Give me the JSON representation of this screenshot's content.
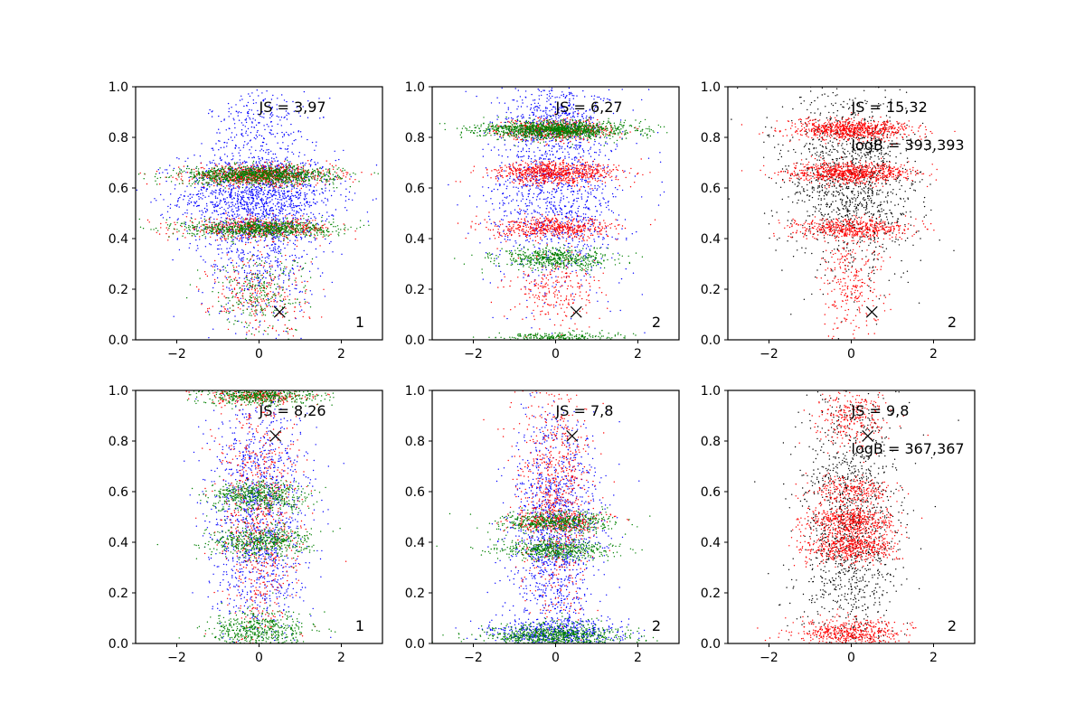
{
  "chart_data": [
    {
      "type": "scatter",
      "panel_label": "1",
      "annotations": [
        "JS = 3,97"
      ],
      "xlim": [
        -3,
        3
      ],
      "ylim": [
        0,
        1
      ],
      "xticks": [
        "−2",
        "0",
        "2"
      ],
      "yticks": [
        "0.0",
        "0.2",
        "0.4",
        "0.6",
        "0.8",
        "1.0"
      ],
      "marker": {
        "x": 0.5,
        "y": 0.11,
        "symbol": "x"
      },
      "series": [
        {
          "color": "#0000ff",
          "bands": [
            {
              "y": 0.57,
              "sy": 0.09,
              "sx": 0.95,
              "w": 5
            },
            {
              "y": 0.35,
              "sy": 0.14,
              "sx": 0.7,
              "w": 2
            },
            {
              "y": 0.85,
              "sy": 0.09,
              "sx": 0.6,
              "w": 1
            }
          ]
        },
        {
          "color": "#ff0000",
          "bands": [
            {
              "y": 0.65,
              "sy": 0.02,
              "sx": 0.9,
              "w": 3
            },
            {
              "y": 0.44,
              "sy": 0.02,
              "sx": 0.9,
              "w": 2
            },
            {
              "y": 0.18,
              "sy": 0.08,
              "sx": 0.6,
              "w": 1
            }
          ]
        },
        {
          "color": "#008000",
          "bands": [
            {
              "y": 0.65,
              "sy": 0.018,
              "sx": 0.95,
              "w": 4
            },
            {
              "y": 0.44,
              "sy": 0.017,
              "sx": 0.9,
              "w": 3
            },
            {
              "y": 0.18,
              "sy": 0.08,
              "sx": 0.6,
              "w": 1
            }
          ]
        }
      ]
    },
    {
      "type": "scatter",
      "panel_label": "2",
      "annotations": [
        "JS = 6,27"
      ],
      "xlim": [
        -3,
        3
      ],
      "ylim": [
        0,
        1
      ],
      "xticks": [
        "−2",
        "0",
        "2"
      ],
      "yticks": [
        "0.0",
        "0.2",
        "0.4",
        "0.6",
        "0.8",
        "1.0"
      ],
      "marker": {
        "x": 0.5,
        "y": 0.11,
        "symbol": "x"
      },
      "series": [
        {
          "color": "#0000ff",
          "bands": [
            {
              "y": 0.6,
              "sy": 0.2,
              "sx": 0.8,
              "w": 5
            },
            {
              "y": 0.9,
              "sy": 0.06,
              "sx": 0.5,
              "w": 1
            }
          ]
        },
        {
          "color": "#ff0000",
          "bands": [
            {
              "y": 0.66,
              "sy": 0.022,
              "sx": 0.75,
              "w": 3
            },
            {
              "y": 0.44,
              "sy": 0.02,
              "sx": 0.75,
              "w": 2
            },
            {
              "y": 0.83,
              "sy": 0.02,
              "sx": 0.7,
              "w": 2
            },
            {
              "y": 0.2,
              "sy": 0.08,
              "sx": 0.5,
              "w": 1
            }
          ]
        },
        {
          "color": "#008000",
          "bands": [
            {
              "y": 0.83,
              "sy": 0.017,
              "sx": 0.9,
              "w": 5
            },
            {
              "y": 0.32,
              "sy": 0.02,
              "sx": 0.7,
              "w": 2
            },
            {
              "y": 0.01,
              "sy": 0.01,
              "sx": 0.7,
              "w": 1
            }
          ]
        }
      ]
    },
    {
      "type": "scatter",
      "panel_label": "2",
      "annotations": [
        "JS = 15,32",
        "logB = 393,393"
      ],
      "xlim": [
        -3,
        3
      ],
      "ylim": [
        0,
        1
      ],
      "xticks": [
        "−2",
        "0",
        "2"
      ],
      "yticks": [
        "0.0",
        "0.2",
        "0.4",
        "0.6",
        "0.8",
        "1.0"
      ],
      "marker": {
        "x": 0.5,
        "y": 0.11,
        "symbol": "x"
      },
      "series": [
        {
          "color": "#000000",
          "bands": [
            {
              "y": 0.62,
              "sy": 0.18,
              "sx": 0.8,
              "w": 5
            }
          ]
        },
        {
          "color": "#ff0000",
          "bands": [
            {
              "y": 0.83,
              "sy": 0.02,
              "sx": 0.75,
              "w": 3
            },
            {
              "y": 0.66,
              "sy": 0.02,
              "sx": 0.75,
              "w": 3
            },
            {
              "y": 0.44,
              "sy": 0.02,
              "sx": 0.7,
              "w": 2
            },
            {
              "y": 0.22,
              "sy": 0.1,
              "sx": 0.4,
              "w": 1
            }
          ]
        }
      ]
    },
    {
      "type": "scatter",
      "panel_label": "1",
      "annotations": [
        "JS = 8,26"
      ],
      "xlim": [
        -3,
        3
      ],
      "ylim": [
        0,
        1
      ],
      "xticks": [
        "−2",
        "0",
        "2"
      ],
      "yticks": [
        "0.0",
        "0.2",
        "0.4",
        "0.6",
        "0.8",
        "1.0"
      ],
      "marker": {
        "x": 0.4,
        "y": 0.82,
        "symbol": "x"
      },
      "series": [
        {
          "color": "#0000ff",
          "bands": [
            {
              "y": 0.5,
              "sy": 0.25,
              "sx": 0.6,
              "w": 5
            }
          ]
        },
        {
          "color": "#ff0000",
          "bands": [
            {
              "y": 0.5,
              "sy": 0.28,
              "sx": 0.5,
              "w": 3
            },
            {
              "y": 0.98,
              "sy": 0.02,
              "sx": 0.6,
              "w": 1
            }
          ]
        },
        {
          "color": "#008000",
          "bands": [
            {
              "y": 0.58,
              "sy": 0.03,
              "sx": 0.6,
              "w": 2
            },
            {
              "y": 0.4,
              "sy": 0.03,
              "sx": 0.6,
              "w": 2
            },
            {
              "y": 0.98,
              "sy": 0.02,
              "sx": 0.7,
              "w": 2
            },
            {
              "y": 0.05,
              "sy": 0.04,
              "sx": 0.6,
              "w": 2
            }
          ]
        }
      ]
    },
    {
      "type": "scatter",
      "panel_label": "2",
      "annotations": [
        "JS = 7,8"
      ],
      "xlim": [
        -3,
        3
      ],
      "ylim": [
        0,
        1
      ],
      "xticks": [
        "−2",
        "0",
        "2"
      ],
      "yticks": [
        "0.0",
        "0.2",
        "0.4",
        "0.6",
        "0.8",
        "1.0"
      ],
      "marker": {
        "x": 0.4,
        "y": 0.82,
        "symbol": "x"
      },
      "series": [
        {
          "color": "#0000ff",
          "bands": [
            {
              "y": 0.45,
              "sy": 0.22,
              "sx": 0.55,
              "w": 5
            },
            {
              "y": 0.04,
              "sy": 0.03,
              "sx": 0.8,
              "w": 2
            }
          ]
        },
        {
          "color": "#ff0000",
          "bands": [
            {
              "y": 0.6,
              "sy": 0.25,
              "sx": 0.45,
              "w": 3
            },
            {
              "y": 0.48,
              "sy": 0.02,
              "sx": 0.6,
              "w": 1
            }
          ]
        },
        {
          "color": "#008000",
          "bands": [
            {
              "y": 0.48,
              "sy": 0.02,
              "sx": 0.7,
              "w": 2
            },
            {
              "y": 0.37,
              "sy": 0.02,
              "sx": 0.7,
              "w": 2
            },
            {
              "y": 0.03,
              "sy": 0.025,
              "sx": 0.8,
              "w": 3
            }
          ]
        }
      ]
    },
    {
      "type": "scatter",
      "panel_label": "2",
      "annotations": [
        "JS = 9,8",
        "logB = 367,367"
      ],
      "xlim": [
        -3,
        3
      ],
      "ylim": [
        0,
        1
      ],
      "xticks": [
        "−2",
        "0",
        "2"
      ],
      "yticks": [
        "0.0",
        "0.2",
        "0.4",
        "0.6",
        "0.8",
        "1.0"
      ],
      "marker": {
        "x": 0.4,
        "y": 0.82,
        "symbol": "x"
      },
      "series": [
        {
          "color": "#000000",
          "bands": [
            {
              "y": 0.45,
              "sy": 0.28,
              "sx": 0.6,
              "w": 5
            }
          ]
        },
        {
          "color": "#ff0000",
          "bands": [
            {
              "y": 0.48,
              "sy": 0.03,
              "sx": 0.55,
              "w": 2
            },
            {
              "y": 0.38,
              "sy": 0.03,
              "sx": 0.55,
              "w": 2
            },
            {
              "y": 0.6,
              "sy": 0.03,
              "sx": 0.5,
              "w": 1
            },
            {
              "y": 0.04,
              "sy": 0.03,
              "sx": 0.65,
              "w": 2
            },
            {
              "y": 0.9,
              "sy": 0.06,
              "sx": 0.45,
              "w": 1
            }
          ]
        }
      ]
    }
  ]
}
